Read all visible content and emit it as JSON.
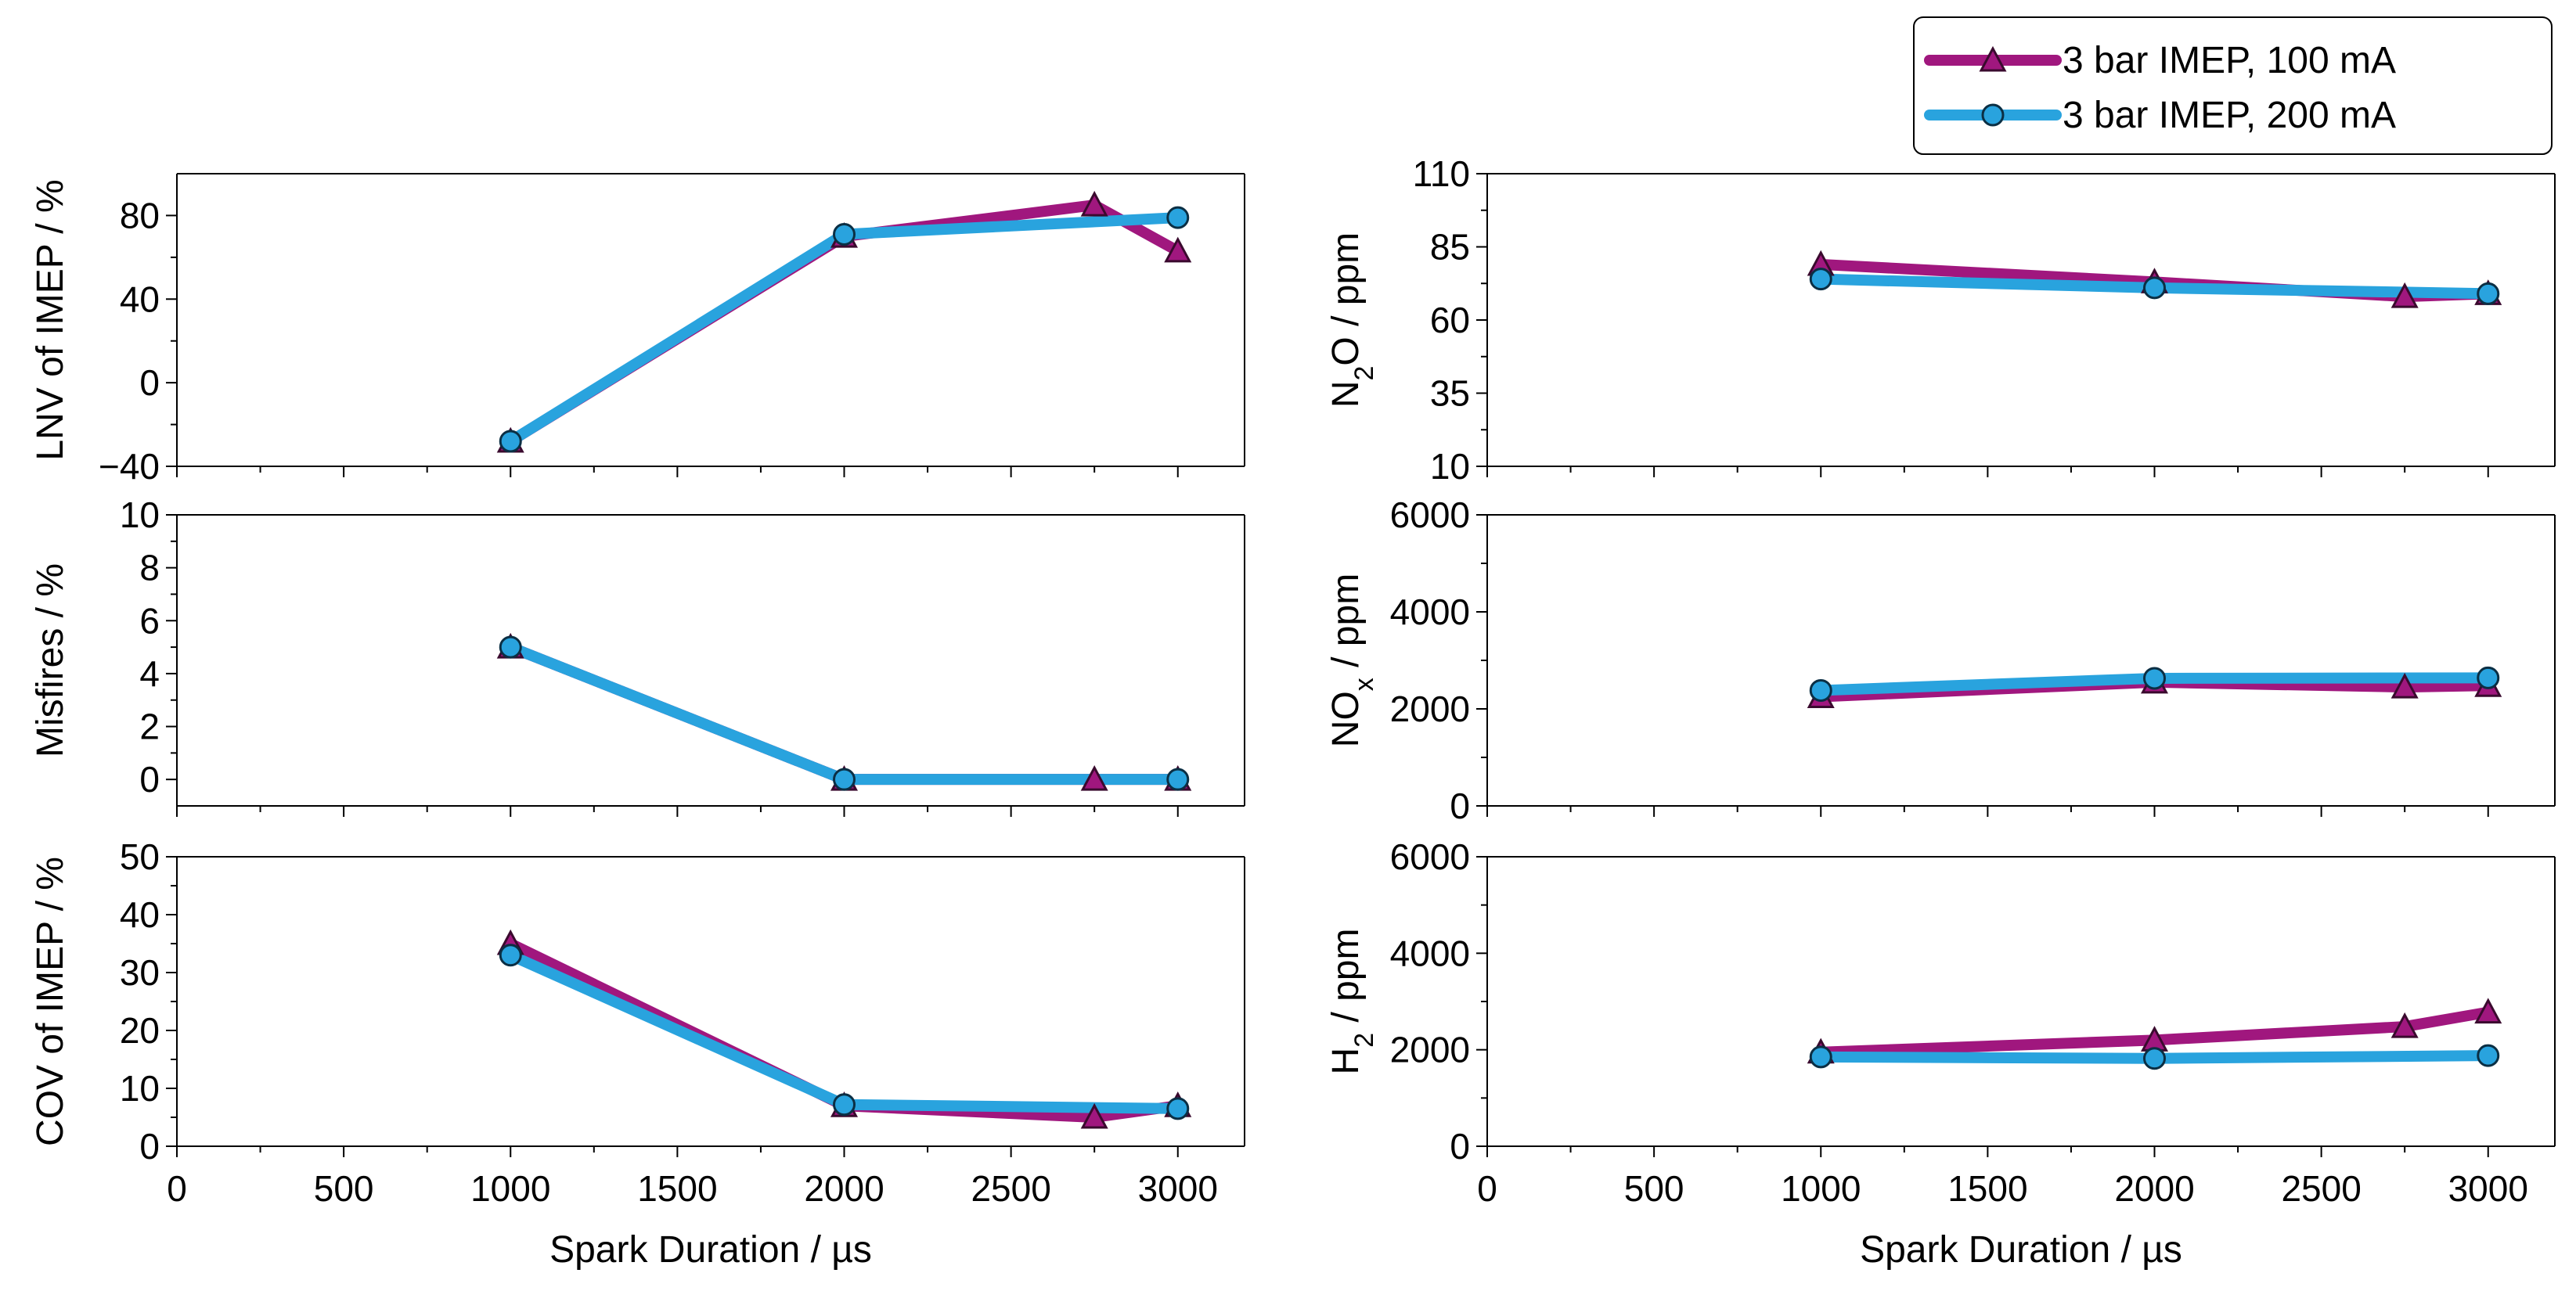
{
  "chart_data": {
    "type": "line",
    "legend": {
      "placement": "top-right",
      "entries": [
        {
          "name": "3 bar IMEP, 100 mA",
          "color": "#a0177e",
          "marker": "triangle"
        },
        {
          "name": "3  bar IMEP, 200 mA",
          "color": "#29a3de",
          "marker": "circle"
        }
      ]
    },
    "x_axis": {
      "label": "Spark Duration / µs",
      "range": [
        0,
        3200
      ],
      "ticks": [
        "0",
        "500",
        "1000",
        "1500",
        "2000",
        "2500",
        "3000"
      ]
    },
    "panels": [
      {
        "id": "lnv",
        "ylabel": "LNV of IMEP / %",
        "ylim": [
          -40,
          100
        ],
        "yticks": [
          "80",
          "40",
          "0",
          "−40"
        ],
        "ytick_values": [
          80,
          40,
          0,
          -40
        ],
        "series": [
          {
            "name": "3 bar IMEP, 100 mA",
            "x": [
              1000,
              2000,
              2750,
              3000
            ],
            "values": [
              -28,
              70,
              85,
              63
            ]
          },
          {
            "name": "3  bar IMEP, 200 mA",
            "x": [
              1000,
              2000,
              3000
            ],
            "values": [
              -28,
              71,
              79
            ]
          }
        ]
      },
      {
        "id": "misfires",
        "ylabel": "Misfires / %",
        "ylim": [
          -1,
          10
        ],
        "yticks": [
          "10",
          "8",
          "6",
          "4",
          "2",
          "0"
        ],
        "ytick_values": [
          10,
          8,
          6,
          4,
          2,
          0
        ],
        "series": [
          {
            "name": "3 bar IMEP, 100 mA",
            "x": [
              1000,
              2000,
              2750,
              3000
            ],
            "values": [
              5,
              0,
              0,
              0
            ]
          },
          {
            "name": "3  bar IMEP, 200 mA",
            "x": [
              1000,
              2000,
              3000
            ],
            "values": [
              5,
              0,
              0
            ]
          }
        ]
      },
      {
        "id": "cov",
        "ylabel": "COV of IMEP / %",
        "ylim": [
          0,
          50
        ],
        "yticks": [
          "50",
          "40",
          "30",
          "20",
          "10",
          "0"
        ],
        "ytick_values": [
          50,
          40,
          30,
          20,
          10,
          0
        ],
        "series": [
          {
            "name": "3 bar IMEP, 100 mA",
            "x": [
              1000,
              2000,
              2750,
              3000
            ],
            "values": [
              35,
              7,
              5,
              7
            ]
          },
          {
            "name": "3  bar IMEP, 200 mA",
            "x": [
              1000,
              2000,
              3000
            ],
            "values": [
              33,
              7.2,
              6.5
            ]
          }
        ]
      },
      {
        "id": "n2o",
        "ylabel": "N2O / ppm",
        "ylabel_parts": [
          "N",
          "2",
          "O / ppm"
        ],
        "ylim": [
          10,
          110
        ],
        "yticks": [
          "110",
          "85",
          "60",
          "35",
          "10"
        ],
        "ytick_values": [
          110,
          85,
          60,
          35,
          10
        ],
        "series": [
          {
            "name": "3 bar IMEP, 100 mA",
            "x": [
              1000,
              2000,
              2750,
              3000
            ],
            "values": [
              79,
              73,
              68,
              69
            ]
          },
          {
            "name": "3  bar IMEP, 200 mA",
            "x": [
              1000,
              2000,
              3000
            ],
            "values": [
              74,
              71,
              69
            ]
          }
        ]
      },
      {
        "id": "nox",
        "ylabel": "NOx / ppm",
        "ylabel_parts": [
          "NO",
          "x",
          " / ppm"
        ],
        "ylim": [
          0,
          6000
        ],
        "yticks": [
          "6000",
          "4000",
          "2000",
          "0"
        ],
        "ytick_values": [
          6000,
          4000,
          2000,
          0
        ],
        "series": [
          {
            "name": "3 bar IMEP, 100 mA",
            "x": [
              1000,
              2000,
              2750,
              3000
            ],
            "values": [
              2250,
              2550,
              2450,
              2480
            ]
          },
          {
            "name": "3  bar IMEP, 200 mA",
            "x": [
              1000,
              2000,
              3000
            ],
            "values": [
              2380,
              2630,
              2640
            ]
          }
        ]
      },
      {
        "id": "h2",
        "ylabel": "H2 / ppm",
        "ylabel_parts": [
          "H",
          "2",
          " / ppm"
        ],
        "ylim": [
          0,
          6000
        ],
        "yticks": [
          "6000",
          "4000",
          "2000",
          "0"
        ],
        "ytick_values": [
          6000,
          4000,
          2000,
          0
        ],
        "series": [
          {
            "name": "3 bar IMEP, 100 mA",
            "x": [
              1000,
              2000,
              2750,
              3000
            ],
            "values": [
              1950,
              2200,
              2480,
              2780
            ]
          },
          {
            "name": "3  bar IMEP, 200 mA",
            "x": [
              1000,
              2000,
              3000
            ],
            "values": [
              1850,
              1820,
              1880
            ]
          }
        ]
      }
    ]
  }
}
